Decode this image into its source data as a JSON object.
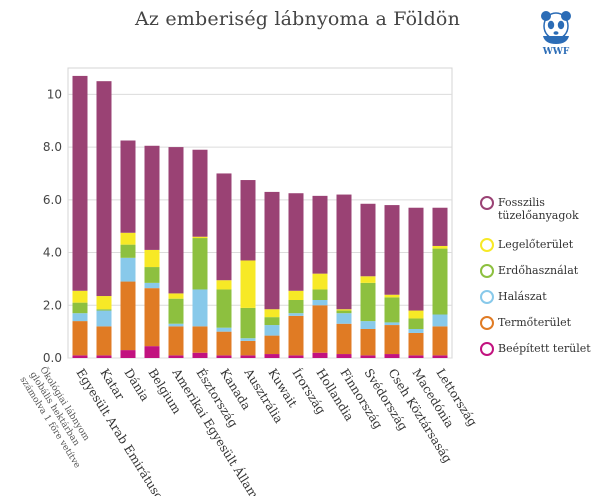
{
  "chart_data": {
    "type": "bar",
    "stacked": true,
    "title": "Az emberiség lábnyoma a Földön",
    "ylim": [
      0,
      11
    ],
    "yticks": [
      "0.0",
      "2.0",
      "4.0",
      "6.0",
      "8.0",
      "10"
    ],
    "ytick_values": [
      0,
      2,
      4,
      6,
      8,
      10
    ],
    "grid": "horizontal",
    "legend_position": "right",
    "note": "Ökológiai lábnyom globális hektárban számolva 1 főre vetítve",
    "categories": [
      "Egyesült Arab Emirátusok",
      "Katar",
      "Dánia",
      "Belgium",
      "Amerikai Egyesült Államok",
      "Észtország",
      "Kanada",
      "Ausztrália",
      "Kuwait",
      "Írország",
      "Hollandia",
      "Finnország",
      "Svédország",
      "Cseh Köztársaság",
      "Macedónia",
      "Lettország"
    ],
    "series": [
      {
        "name": "Beépített terület",
        "color": "#c2127f",
        "values": [
          0.1,
          0.1,
          0.3,
          0.45,
          0.1,
          0.2,
          0.1,
          0.1,
          0.15,
          0.1,
          0.2,
          0.15,
          0.1,
          0.15,
          0.1,
          0.1
        ]
      },
      {
        "name": "Termőterület",
        "color": "#e07b24",
        "values": [
          1.3,
          1.1,
          2.6,
          2.2,
          1.1,
          1.0,
          0.9,
          0.55,
          0.7,
          1.5,
          1.8,
          1.15,
          1.0,
          1.1,
          0.85,
          1.1
        ]
      },
      {
        "name": "Halászat",
        "color": "#88c9ea",
        "values": [
          0.3,
          0.6,
          0.9,
          0.2,
          0.1,
          1.4,
          0.15,
          0.1,
          0.4,
          0.1,
          0.2,
          0.4,
          0.3,
          0.1,
          0.15,
          0.45
        ]
      },
      {
        "name": "Erdőhasználat",
        "color": "#8dc03f",
        "values": [
          0.4,
          0.05,
          0.5,
          0.6,
          0.95,
          1.95,
          1.45,
          1.15,
          0.3,
          0.5,
          0.4,
          0.1,
          1.45,
          0.95,
          0.4,
          2.5
        ]
      },
      {
        "name": "Legelőterület",
        "color": "#f7e926",
        "values": [
          0.45,
          0.5,
          0.45,
          0.65,
          0.2,
          0.05,
          0.35,
          1.8,
          0.3,
          0.35,
          0.6,
          0.05,
          0.25,
          0.1,
          0.3,
          0.1
        ]
      },
      {
        "name": "Fosszilis tüzelőanyagok",
        "color": "#9a4274",
        "values": [
          8.15,
          8.15,
          3.5,
          3.95,
          5.55,
          3.3,
          4.05,
          3.05,
          4.45,
          3.7,
          2.95,
          4.35,
          2.75,
          3.4,
          3.9,
          1.45
        ]
      }
    ]
  },
  "legend": [
    {
      "label": "Fosszilis tüzelőanyagok",
      "lines": [
        "Fosszilis",
        "tüzelőanyagok"
      ],
      "color": "#9a4274"
    },
    {
      "label": "Legelőterület",
      "lines": [
        "Legelőterület"
      ],
      "color": "#f7e926"
    },
    {
      "label": "Erdőhasználat",
      "lines": [
        "Erdőhasználat"
      ],
      "color": "#8dc03f"
    },
    {
      "label": "Halászat",
      "lines": [
        "Halászat"
      ],
      "color": "#88c9ea"
    },
    {
      "label": "Termőterület",
      "lines": [
        "Termőterület"
      ],
      "color": "#e07b24"
    },
    {
      "label": "Beépített terület",
      "lines": [
        "Beépített terület"
      ],
      "color": "#c2127f"
    }
  ],
  "logo": {
    "text": "WWF",
    "icon": "panda-icon"
  },
  "note_lines": [
    "Ökológiai lábnyom",
    "globális hektárban",
    "számolva 1 főre vetítve"
  ]
}
